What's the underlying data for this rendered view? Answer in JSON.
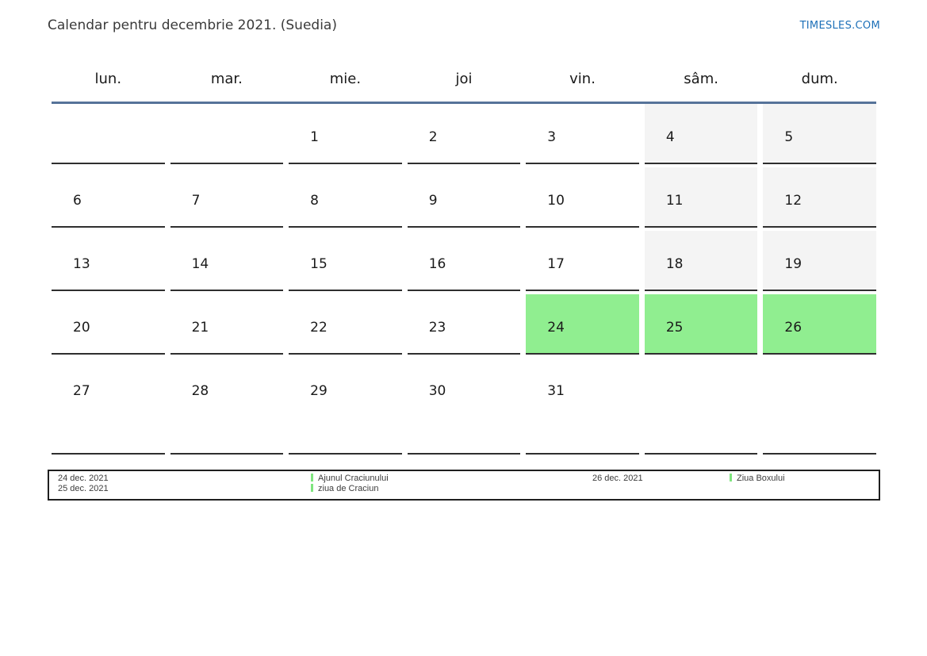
{
  "page": {
    "title": "Calendar pentru decembrie 2021. (Suedia)",
    "brand": "TIMESLES.COM"
  },
  "calendar": {
    "weekdays": [
      "lun.",
      "mar.",
      "mie.",
      "joi",
      "vin.",
      "sâm.",
      "dum."
    ],
    "weeks": [
      [
        "",
        "",
        "1",
        "2",
        "3",
        "4",
        "5"
      ],
      [
        "6",
        "7",
        "8",
        "9",
        "10",
        "11",
        "12"
      ],
      [
        "13",
        "14",
        "15",
        "16",
        "17",
        "18",
        "19"
      ],
      [
        "20",
        "21",
        "22",
        "23",
        "24",
        "25",
        "26"
      ],
      [
        "27",
        "28",
        "29",
        "30",
        "31",
        "",
        ""
      ]
    ],
    "weekend_days": [
      4,
      5,
      11,
      12,
      18,
      19
    ],
    "holiday_days": [
      24,
      25,
      26
    ]
  },
  "legend": {
    "entries": [
      {
        "dates": [
          "24 dec. 2021",
          "25 dec. 2021"
        ],
        "names": [
          "Ajunul Craciunului",
          "ziua de Craciun"
        ]
      },
      {
        "dates": [
          "26 dec. 2021"
        ],
        "names": [
          "Ziua Boxului"
        ]
      }
    ]
  },
  "colors": {
    "weekend_bg": "#f4f4f4",
    "holiday_bg": "#90ee90",
    "header_line": "#567399",
    "marker_green": "#7fe57f",
    "brand_blue": "#1d70b8"
  }
}
